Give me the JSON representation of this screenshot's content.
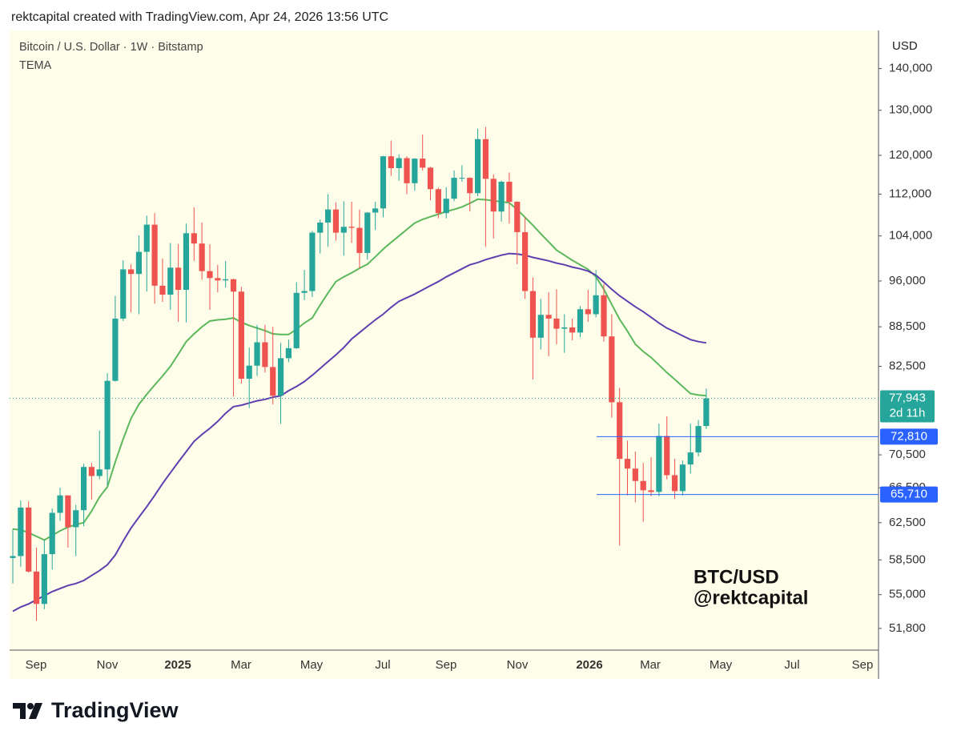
{
  "header": {
    "caption": "rektcapital created with TradingView.com, Apr 24, 2026 13:56 UTC"
  },
  "chart_data": {
    "type": "candlestick",
    "title": "Bitcoin / U.S. Dollar · 1W · Bitstamp",
    "indicator": "TEMA",
    "y_axis_label": "USD",
    "scale": "log",
    "ylim": [
      49840,
      149800
    ],
    "yticks": [
      {
        "value": 51800,
        "label": "51,800"
      },
      {
        "value": 55000,
        "label": "55,000"
      },
      {
        "value": 58500,
        "label": "58,500"
      },
      {
        "value": 62500,
        "label": "62,500"
      },
      {
        "value": 66500,
        "label": "66,500"
      },
      {
        "value": 70500,
        "label": "70,500"
      },
      {
        "value": 82500,
        "label": "82,500"
      },
      {
        "value": 88500,
        "label": "88,500"
      },
      {
        "value": 96000,
        "label": "96,000"
      },
      {
        "value": 104000,
        "label": "104,000"
      },
      {
        "value": 112000,
        "label": "112,000"
      },
      {
        "value": 120000,
        "label": "120,000"
      },
      {
        "value": 130000,
        "label": "130,000"
      },
      {
        "value": 140000,
        "label": "140,000"
      }
    ],
    "x_labels": [
      "Sep",
      "Nov",
      "2025",
      "Mar",
      "May",
      "Jul",
      "Sep",
      "Nov",
      "2026",
      "Mar",
      "May",
      "Jul",
      "Sep"
    ],
    "up_color": "#26a69a",
    "down_color": "#ef5350",
    "open": [
      58700,
      58900,
      64200,
      57300,
      54100,
      59100,
      63600,
      65600,
      62000,
      63900,
      69000,
      67900,
      68700,
      80400,
      89800,
      98000,
      97200,
      101100,
      106100,
      95200,
      93700,
      98300,
      94500,
      104500,
      102600,
      97700,
      96500,
      96100,
      96300,
      94200,
      80700,
      82600,
      86100,
      82400,
      78300,
      83700,
      85200,
      94000,
      94300,
      104600,
      106500,
      109000,
      104600,
      105700,
      105500,
      100900,
      108400,
      109200,
      119800,
      117300,
      119400,
      114200,
      119300,
      117400,
      113000,
      108300,
      111100,
      115300,
      115300,
      112200,
      123500,
      115100,
      108600,
      114500,
      110500,
      104700,
      94300,
      86800,
      90400,
      89800,
      88200,
      88400,
      87600,
      91300,
      90500,
      93600,
      87000,
      77400,
      70000,
      68800,
      67300,
      66200,
      66000,
      72900,
      68000,
      66100,
      69300,
      70800,
      74200
    ],
    "high": [
      61800,
      65000,
      64900,
      59800,
      60600,
      64100,
      66500,
      65600,
      64500,
      69400,
      69500,
      73600,
      81500,
      93500,
      99600,
      98900,
      104100,
      107800,
      108300,
      99900,
      102700,
      102500,
      106300,
      109400,
      106500,
      102500,
      98800,
      99500,
      96400,
      95000,
      85300,
      88800,
      88800,
      88500,
      86000,
      86500,
      95800,
      97900,
      104900,
      107100,
      112000,
      110400,
      110600,
      110500,
      109000,
      108500,
      110500,
      119900,
      123200,
      120200,
      119800,
      119400,
      124500,
      117600,
      113300,
      113400,
      116800,
      117900,
      115400,
      125800,
      126200,
      116000,
      114700,
      116400,
      110600,
      107500,
      96600,
      93000,
      94100,
      94600,
      90500,
      89800,
      91800,
      94500,
      97900,
      95500,
      90500,
      79400,
      72300,
      70900,
      69500,
      70200,
      74500,
      75500,
      70000,
      69800,
      74500,
      75000,
      79300
    ],
    "low": [
      56100,
      57800,
      57200,
      52500,
      53600,
      57500,
      62700,
      59800,
      58900,
      62100,
      65100,
      67500,
      66800,
      80300,
      89400,
      90800,
      90500,
      94200,
      92200,
      92500,
      91200,
      89300,
      89200,
      99500,
      96200,
      91200,
      94100,
      94900,
      78200,
      80000,
      76600,
      81100,
      81600,
      77100,
      74500,
      83100,
      85100,
      92800,
      93300,
      100800,
      102000,
      103100,
      100400,
      102700,
      98200,
      99700,
      105100,
      107500,
      115700,
      114700,
      112000,
      112700,
      116800,
      110800,
      107300,
      107300,
      110600,
      114500,
      108600,
      111600,
      102000,
      103500,
      106700,
      106300,
      98900,
      93000,
      80600,
      85000,
      84000,
      85800,
      84500,
      86400,
      86900,
      89300,
      90000,
      86200,
      75300,
      60000,
      65600,
      64800,
      62600,
      65500,
      65500,
      67500,
      65200,
      65600,
      68200,
      70300,
      73800
    ],
    "close": [
      58900,
      64200,
      57300,
      54100,
      59100,
      63600,
      65600,
      62000,
      63900,
      69000,
      67900,
      68700,
      80400,
      89800,
      98000,
      97200,
      101100,
      106100,
      95200,
      93700,
      98300,
      94500,
      104500,
      102600,
      97700,
      96500,
      96100,
      96300,
      94200,
      80700,
      82600,
      86100,
      82400,
      78300,
      83700,
      85200,
      94000,
      94300,
      104600,
      106500,
      109000,
      104600,
      105700,
      105500,
      100900,
      108400,
      109200,
      119800,
      117300,
      119400,
      114200,
      119300,
      117400,
      113000,
      108300,
      111100,
      115300,
      115300,
      112200,
      123500,
      115100,
      108600,
      114500,
      110500,
      104700,
      94300,
      86800,
      90400,
      89800,
      88200,
      88400,
      87600,
      91300,
      90500,
      93600,
      87000,
      77400,
      70000,
      68800,
      67300,
      66200,
      66000,
      72900,
      68000,
      66100,
      69300,
      70800,
      74200,
      77943
    ],
    "lines": [
      {
        "color": "#5cb85c",
        "values": [
          61800,
          61700,
          61400,
          61000,
          60600,
          61100,
          61600,
          62000,
          62300,
          62500,
          63800,
          65400,
          66600,
          69600,
          72500,
          75200,
          77100,
          78500,
          79800,
          81100,
          82500,
          84300,
          86200,
          87400,
          88500,
          89400,
          89600,
          89700,
          89900,
          89200,
          88700,
          88300,
          87900,
          87400,
          87300,
          87300,
          88100,
          89100,
          89900,
          92000,
          94000,
          95900,
          96700,
          97400,
          98200,
          98900,
          100200,
          101600,
          102800,
          104000,
          105200,
          106400,
          107100,
          107600,
          108100,
          108600,
          109000,
          109500,
          110200,
          111000,
          110900,
          110700,
          110500,
          110300,
          109000,
          107500,
          106000,
          104400,
          102900,
          101400,
          100500,
          99600,
          98800,
          98000,
          96700,
          94600,
          92100,
          89700,
          87800,
          85800,
          84700,
          83800,
          82700,
          81600,
          80600,
          79600,
          78600,
          78400,
          78300
        ]
      },
      {
        "color": "#5e3fb0",
        "values": [
          53400,
          53800,
          54100,
          54500,
          54900,
          55300,
          55600,
          55900,
          56100,
          56400,
          56900,
          57400,
          58000,
          59000,
          60500,
          61900,
          63100,
          64300,
          65600,
          67000,
          68300,
          69600,
          70900,
          72200,
          73100,
          73900,
          74800,
          75900,
          76800,
          77000,
          77300,
          77600,
          77800,
          78100,
          78300,
          79000,
          79600,
          80300,
          81200,
          82200,
          83200,
          84200,
          85300,
          86600,
          87600,
          88600,
          89600,
          90500,
          91600,
          92600,
          93200,
          93800,
          94500,
          95200,
          95900,
          96700,
          97400,
          98100,
          98800,
          99200,
          99700,
          100100,
          100500,
          100800,
          100700,
          100500,
          100100,
          99800,
          99500,
          99100,
          98800,
          98400,
          98100,
          97700,
          97000,
          95800,
          94600,
          93500,
          92600,
          91700,
          90900,
          90000,
          89100,
          88300,
          87700,
          87100,
          86500,
          86200,
          86000
        ]
      }
    ],
    "last_price": {
      "value": 77943,
      "label": "77,943",
      "countdown": "2d 11h",
      "color": "#26a69a"
    },
    "levels": [
      {
        "value": 72810,
        "label": "72,810",
        "color": "#2962ff"
      },
      {
        "value": 65710,
        "label": "65,710",
        "color": "#2962ff"
      }
    ],
    "annotation": [
      "BTC/USD",
      "@rektcapital"
    ]
  },
  "footer": {
    "brand": "TradingView"
  }
}
